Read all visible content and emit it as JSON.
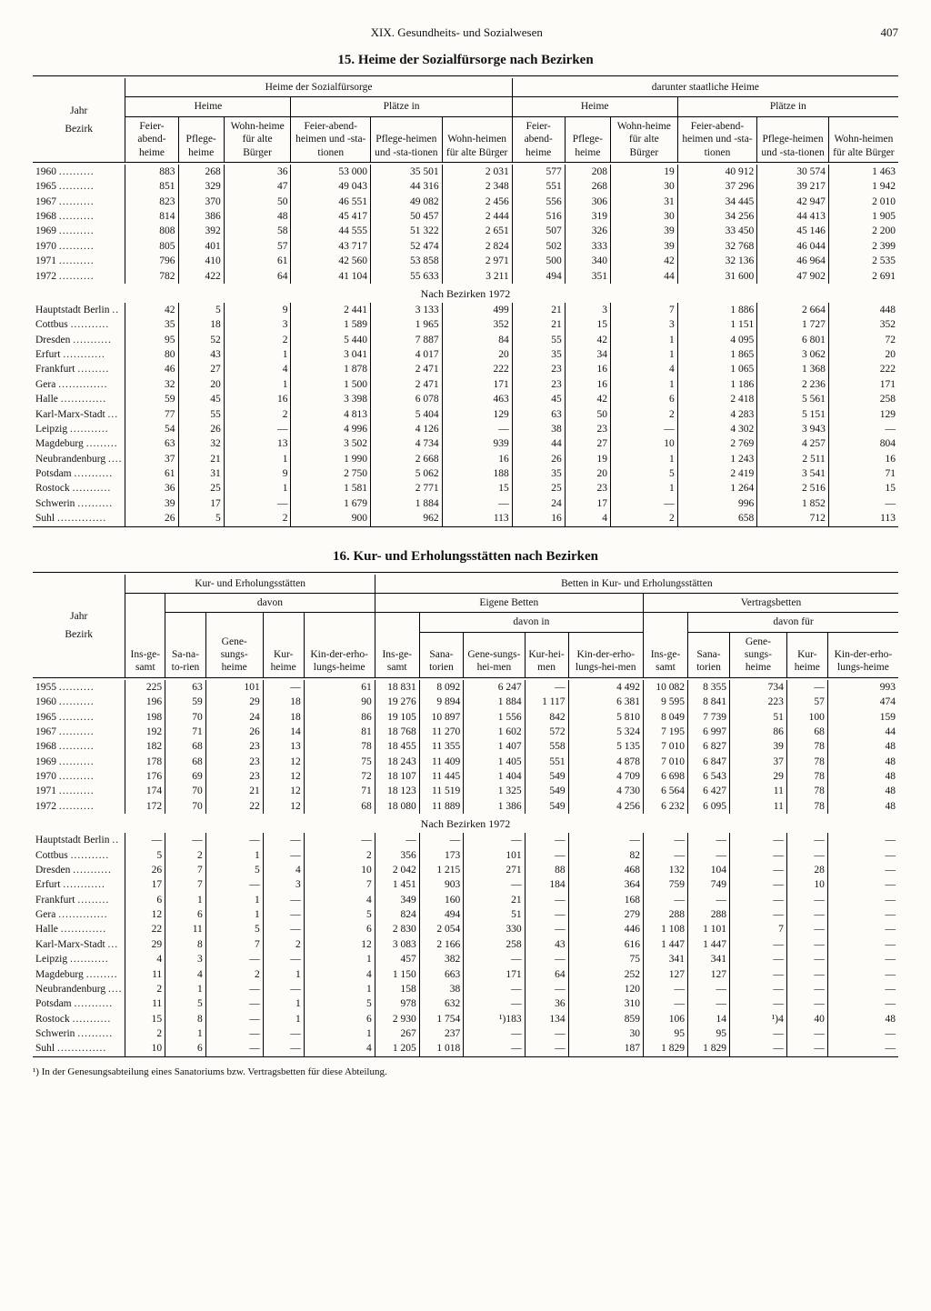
{
  "page": {
    "chapter": "XIX. Gesundheits- und Sozialwesen",
    "number": "407"
  },
  "t15": {
    "title": "15. Heime der Sozialfürsorge nach Bezirken",
    "group_top": [
      "Heime der Sozialfürsorge",
      "darunter staatliche Heime"
    ],
    "group_sub": [
      "Heime",
      "Plätze in",
      "Heime",
      "Plätze in"
    ],
    "rowhead": [
      "Jahr",
      "Bezirk"
    ],
    "cols": [
      "Feier-abend-heime",
      "Pflege-heime",
      "Wohn-heime für alte Bürger",
      "Feier-abend-heimen und -sta-tionen",
      "Pflege-heimen und -sta-tionen",
      "Wohn-heimen für alte Bürger",
      "Feier-abend-heime",
      "Pflege-heime",
      "Wohn-heime für alte Bürger",
      "Feier-abend-heimen und -sta-tionen",
      "Pflege-heimen und -sta-tionen",
      "Wohn-heimen für alte Bürger"
    ],
    "years": [
      {
        "l": "1960",
        "v": [
          "883",
          "268",
          "36",
          "53 000",
          "35 501",
          "2 031",
          "577",
          "208",
          "19",
          "40 912",
          "30 574",
          "1 463"
        ]
      },
      {
        "l": "1965",
        "v": [
          "851",
          "329",
          "47",
          "49 043",
          "44 316",
          "2 348",
          "551",
          "268",
          "30",
          "37 296",
          "39 217",
          "1 942"
        ]
      },
      {
        "l": "1967",
        "v": [
          "823",
          "370",
          "50",
          "46 551",
          "49 082",
          "2 456",
          "556",
          "306",
          "31",
          "34 445",
          "42 947",
          "2 010"
        ]
      },
      {
        "l": "1968",
        "v": [
          "814",
          "386",
          "48",
          "45 417",
          "50 457",
          "2 444",
          "516",
          "319",
          "30",
          "34 256",
          "44 413",
          "1 905"
        ]
      },
      {
        "l": "1969",
        "v": [
          "808",
          "392",
          "58",
          "44 555",
          "51 322",
          "2 651",
          "507",
          "326",
          "39",
          "33 450",
          "45 146",
          "2 200"
        ]
      },
      {
        "l": "1970",
        "v": [
          "805",
          "401",
          "57",
          "43 717",
          "52 474",
          "2 824",
          "502",
          "333",
          "39",
          "32 768",
          "46 044",
          "2 399"
        ]
      },
      {
        "l": "1971",
        "v": [
          "796",
          "410",
          "61",
          "42 560",
          "53 858",
          "2 971",
          "500",
          "340",
          "42",
          "32 136",
          "46 964",
          "2 535"
        ]
      },
      {
        "l": "1972",
        "v": [
          "782",
          "422",
          "64",
          "41 104",
          "55 633",
          "3 211",
          "494",
          "351",
          "44",
          "31 600",
          "47 902",
          "2 691"
        ]
      }
    ],
    "mid": "Nach Bezirken 1972",
    "bez": [
      {
        "l": "Hauptstadt Berlin",
        "v": [
          "42",
          "5",
          "9",
          "2 441",
          "3 133",
          "499",
          "21",
          "3",
          "7",
          "1 886",
          "2 664",
          "448"
        ]
      },
      {
        "l": "Cottbus",
        "v": [
          "35",
          "18",
          "3",
          "1 589",
          "1 965",
          "352",
          "21",
          "15",
          "3",
          "1 151",
          "1 727",
          "352"
        ]
      },
      {
        "l": "Dresden",
        "v": [
          "95",
          "52",
          "2",
          "5 440",
          "7 887",
          "84",
          "55",
          "42",
          "1",
          "4 095",
          "6 801",
          "72"
        ]
      },
      {
        "l": "Erfurt",
        "v": [
          "80",
          "43",
          "1",
          "3 041",
          "4 017",
          "20",
          "35",
          "34",
          "1",
          "1 865",
          "3 062",
          "20"
        ]
      },
      {
        "l": "Frankfurt",
        "v": [
          "46",
          "27",
          "4",
          "1 878",
          "2 471",
          "222",
          "23",
          "16",
          "4",
          "1 065",
          "1 368",
          "222"
        ]
      },
      {
        "l": "Gera",
        "v": [
          "32",
          "20",
          "1",
          "1 500",
          "2 471",
          "171",
          "23",
          "16",
          "1",
          "1 186",
          "2 236",
          "171"
        ]
      },
      {
        "l": "Halle",
        "v": [
          "59",
          "45",
          "16",
          "3 398",
          "6 078",
          "463",
          "45",
          "42",
          "6",
          "2 418",
          "5 561",
          "258"
        ]
      },
      {
        "l": "Karl-Marx-Stadt",
        "v": [
          "77",
          "55",
          "2",
          "4 813",
          "5 404",
          "129",
          "63",
          "50",
          "2",
          "4 283",
          "5 151",
          "129"
        ]
      },
      {
        "l": "Leipzig",
        "v": [
          "54",
          "26",
          "—",
          "4 996",
          "4 126",
          "—",
          "38",
          "23",
          "—",
          "4 302",
          "3 943",
          "—"
        ]
      },
      {
        "l": "Magdeburg",
        "v": [
          "63",
          "32",
          "13",
          "3 502",
          "4 734",
          "939",
          "44",
          "27",
          "10",
          "2 769",
          "4 257",
          "804"
        ]
      },
      {
        "l": "Neubrandenburg",
        "v": [
          "37",
          "21",
          "1",
          "1 990",
          "2 668",
          "16",
          "26",
          "19",
          "1",
          "1 243",
          "2 511",
          "16"
        ]
      },
      {
        "l": "Potsdam",
        "v": [
          "61",
          "31",
          "9",
          "2 750",
          "5 062",
          "188",
          "35",
          "20",
          "5",
          "2 419",
          "3 541",
          "71"
        ]
      },
      {
        "l": "Rostock",
        "v": [
          "36",
          "25",
          "1",
          "1 581",
          "2 771",
          "15",
          "25",
          "23",
          "1",
          "1 264",
          "2 516",
          "15"
        ]
      },
      {
        "l": "Schwerin",
        "v": [
          "39",
          "17",
          "—",
          "1 679",
          "1 884",
          "—",
          "24",
          "17",
          "—",
          "996",
          "1 852",
          "—"
        ]
      },
      {
        "l": "Suhl",
        "v": [
          "26",
          "5",
          "2",
          "900",
          "962",
          "113",
          "16",
          "4",
          "2",
          "658",
          "712",
          "113"
        ]
      }
    ]
  },
  "t16": {
    "title": "16. Kur- und Erholungsstätten nach Bezirken",
    "group_top": [
      "Kur- und Erholungsstätten",
      "Betten in Kur- und Erholungsstätten"
    ],
    "group_mid": [
      "davon",
      "Eigene Betten",
      "Vertragsbetten"
    ],
    "sub_davon": [
      "davon in",
      "davon für"
    ],
    "rowhead": [
      "Jahr",
      "Bezirk"
    ],
    "cols": [
      "Ins-ge-samt",
      "Sa-na-to-rien",
      "Gene-sungs-heime",
      "Kur-heime",
      "Kin-der-erho-lungs-heime",
      "Ins-ge-samt",
      "Sana-torien",
      "Gene-sungs-hei-men",
      "Kur-hei-men",
      "Kin-der-erho-lungs-hei-men",
      "Ins-ge-samt",
      "Sana-torien",
      "Gene-sungs-heime",
      "Kur-heime",
      "Kin-der-erho-lungs-heime"
    ],
    "years": [
      {
        "l": "1955",
        "v": [
          "225",
          "63",
          "101",
          "—",
          "61",
          "18 831",
          "8 092",
          "6 247",
          "—",
          "4 492",
          "10 082",
          "8 355",
          "734",
          "—",
          "993"
        ]
      },
      {
        "l": "1960",
        "v": [
          "196",
          "59",
          "29",
          "18",
          "90",
          "19 276",
          "9 894",
          "1 884",
          "1 117",
          "6 381",
          "9 595",
          "8 841",
          "223",
          "57",
          "474"
        ]
      },
      {
        "l": "1965",
        "v": [
          "198",
          "70",
          "24",
          "18",
          "86",
          "19 105",
          "10 897",
          "1 556",
          "842",
          "5 810",
          "8 049",
          "7 739",
          "51",
          "100",
          "159"
        ]
      },
      {
        "l": "1967",
        "v": [
          "192",
          "71",
          "26",
          "14",
          "81",
          "18 768",
          "11 270",
          "1 602",
          "572",
          "5 324",
          "7 195",
          "6 997",
          "86",
          "68",
          "44"
        ]
      },
      {
        "l": "1968",
        "v": [
          "182",
          "68",
          "23",
          "13",
          "78",
          "18 455",
          "11 355",
          "1 407",
          "558",
          "5 135",
          "7 010",
          "6 827",
          "39",
          "78",
          "48"
        ]
      },
      {
        "l": "1969",
        "v": [
          "178",
          "68",
          "23",
          "12",
          "75",
          "18 243",
          "11 409",
          "1 405",
          "551",
          "4 878",
          "7 010",
          "6 847",
          "37",
          "78",
          "48"
        ]
      },
      {
        "l": "1970",
        "v": [
          "176",
          "69",
          "23",
          "12",
          "72",
          "18 107",
          "11 445",
          "1 404",
          "549",
          "4 709",
          "6 698",
          "6 543",
          "29",
          "78",
          "48"
        ]
      },
      {
        "l": "1971",
        "v": [
          "174",
          "70",
          "21",
          "12",
          "71",
          "18 123",
          "11 519",
          "1 325",
          "549",
          "4 730",
          "6 564",
          "6 427",
          "11",
          "78",
          "48"
        ]
      },
      {
        "l": "1972",
        "v": [
          "172",
          "70",
          "22",
          "12",
          "68",
          "18 080",
          "11 889",
          "1 386",
          "549",
          "4 256",
          "6 232",
          "6 095",
          "11",
          "78",
          "48"
        ]
      }
    ],
    "mid": "Nach Bezirken 1972",
    "bez": [
      {
        "l": "Hauptstadt Berlin",
        "v": [
          "—",
          "—",
          "—",
          "—",
          "—",
          "—",
          "—",
          "—",
          "—",
          "—",
          "—",
          "—",
          "—",
          "—",
          "—"
        ]
      },
      {
        "l": "Cottbus",
        "v": [
          "5",
          "2",
          "1",
          "—",
          "2",
          "356",
          "173",
          "101",
          "—",
          "82",
          "—",
          "—",
          "—",
          "—",
          "—"
        ]
      },
      {
        "l": "Dresden",
        "v": [
          "26",
          "7",
          "5",
          "4",
          "10",
          "2 042",
          "1 215",
          "271",
          "88",
          "468",
          "132",
          "104",
          "—",
          "28",
          "—"
        ]
      },
      {
        "l": "Erfurt",
        "v": [
          "17",
          "7",
          "—",
          "3",
          "7",
          "1 451",
          "903",
          "—",
          "184",
          "364",
          "759",
          "749",
          "—",
          "10",
          "—"
        ]
      },
      {
        "l": "Frankfurt",
        "v": [
          "6",
          "1",
          "1",
          "—",
          "4",
          "349",
          "160",
          "21",
          "—",
          "168",
          "—",
          "—",
          "—",
          "—",
          "—"
        ]
      },
      {
        "l": "Gera",
        "v": [
          "12",
          "6",
          "1",
          "—",
          "5",
          "824",
          "494",
          "51",
          "—",
          "279",
          "288",
          "288",
          "—",
          "—",
          "—"
        ]
      },
      {
        "l": "Halle",
        "v": [
          "22",
          "11",
          "5",
          "—",
          "6",
          "2 830",
          "2 054",
          "330",
          "—",
          "446",
          "1 108",
          "1 101",
          "7",
          "—",
          "—"
        ]
      },
      {
        "l": "Karl-Marx-Stadt",
        "v": [
          "29",
          "8",
          "7",
          "2",
          "12",
          "3 083",
          "2 166",
          "258",
          "43",
          "616",
          "1 447",
          "1 447",
          "—",
          "—",
          "—"
        ]
      },
      {
        "l": "Leipzig",
        "v": [
          "4",
          "3",
          "—",
          "—",
          "1",
          "457",
          "382",
          "—",
          "—",
          "75",
          "341",
          "341",
          "—",
          "—",
          "—"
        ]
      },
      {
        "l": "Magdeburg",
        "v": [
          "11",
          "4",
          "2",
          "1",
          "4",
          "1 150",
          "663",
          "171",
          "64",
          "252",
          "127",
          "127",
          "—",
          "—",
          "—"
        ]
      },
      {
        "l": "Neubrandenburg",
        "v": [
          "2",
          "1",
          "—",
          "—",
          "1",
          "158",
          "38",
          "—",
          "—",
          "120",
          "—",
          "—",
          "—",
          "—",
          "—"
        ]
      },
      {
        "l": "Potsdam",
        "v": [
          "11",
          "5",
          "—",
          "1",
          "5",
          "978",
          "632",
          "—",
          "36",
          "310",
          "—",
          "—",
          "—",
          "—",
          "—"
        ]
      },
      {
        "l": "Rostock",
        "v": [
          "15",
          "8",
          "—",
          "1",
          "6",
          "2 930",
          "1 754",
          "¹)183",
          "134",
          "859",
          "106",
          "14",
          "¹)4",
          "40",
          "48"
        ]
      },
      {
        "l": "Schwerin",
        "v": [
          "2",
          "1",
          "—",
          "—",
          "1",
          "267",
          "237",
          "—",
          "—",
          "30",
          "95",
          "95",
          "—",
          "—",
          "—"
        ]
      },
      {
        "l": "Suhl",
        "v": [
          "10",
          "6",
          "—",
          "—",
          "4",
          "1 205",
          "1 018",
          "—",
          "—",
          "187",
          "1 829",
          "1 829",
          "—",
          "—",
          "—"
        ]
      }
    ],
    "footnote": "¹) In der Genesungsabteilung eines Sanatoriums bzw. Vertragsbetten für diese Abteilung."
  }
}
